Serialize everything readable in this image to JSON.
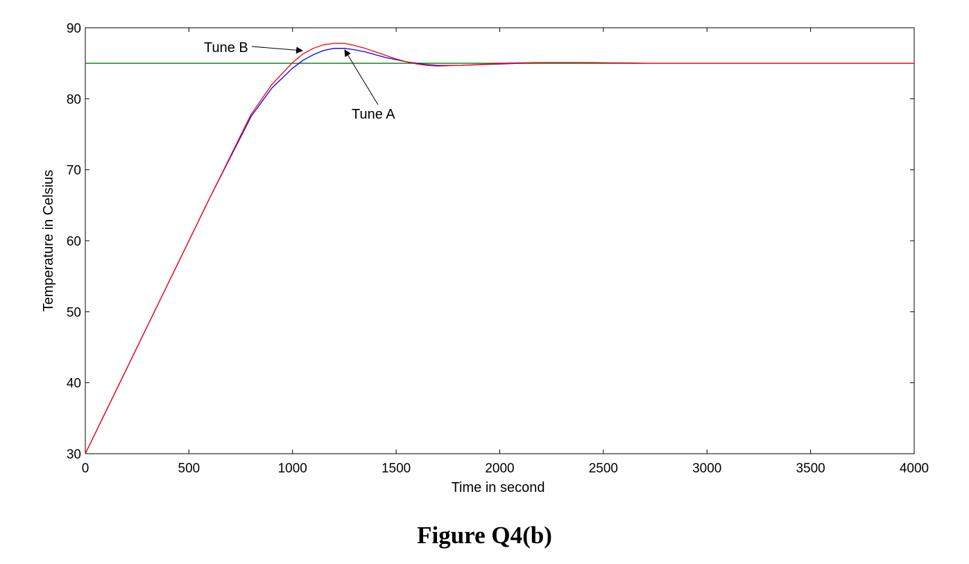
{
  "figure": {
    "caption": "Figure Q4(b)"
  },
  "chart_data": {
    "type": "line",
    "xlabel": "Time in second",
    "ylabel": "Temperature in Celsius",
    "xlim": [
      0,
      4000
    ],
    "ylim": [
      30,
      90
    ],
    "xticks": [
      0,
      500,
      1000,
      1500,
      2000,
      2500,
      3000,
      3500,
      4000
    ],
    "yticks": [
      30,
      40,
      50,
      60,
      70,
      80,
      90
    ],
    "grid": false,
    "series": [
      {
        "name": "Tune A",
        "color": "#0000ff",
        "x": [
          0,
          200,
          400,
          600,
          800,
          900,
          1000,
          1050,
          1100,
          1150,
          1200,
          1250,
          1300,
          1350,
          1400,
          1450,
          1500,
          1550,
          1600,
          1650,
          1700,
          1800,
          1900,
          2000,
          2200,
          2400,
          2700
        ],
        "y": [
          30,
          42,
          54,
          66,
          77.5,
          81.5,
          84.3,
          85.4,
          86.2,
          86.8,
          87.1,
          87.1,
          86.9,
          86.6,
          86.2,
          85.8,
          85.5,
          85.2,
          85.0,
          84.8,
          84.7,
          84.7,
          84.8,
          84.9,
          85.1,
          85.1,
          85.0
        ]
      },
      {
        "name": "Tune B",
        "color": "#ff0000",
        "x": [
          0,
          200,
          400,
          600,
          800,
          900,
          1000,
          1050,
          1100,
          1150,
          1200,
          1250,
          1300,
          1350,
          1400,
          1450,
          1500,
          1550,
          1600,
          1650,
          1700,
          1800,
          1900,
          2000,
          2200,
          2400,
          2700,
          3000,
          4000
        ],
        "y": [
          30,
          42,
          54,
          66,
          77.8,
          82,
          85.1,
          86.3,
          87.1,
          87.6,
          87.8,
          87.8,
          87.5,
          87.1,
          86.6,
          86.1,
          85.6,
          85.2,
          84.9,
          84.7,
          84.6,
          84.7,
          84.8,
          85.0,
          85.1,
          85.1,
          85.0,
          85.0,
          85.0
        ]
      },
      {
        "name": "",
        "color": "#008000",
        "x": [
          0,
          4000
        ],
        "y": [
          85,
          85
        ]
      }
    ],
    "annotations": [
      {
        "text": "Tune B",
        "points_to": "Tune B"
      },
      {
        "text": "Tune A",
        "points_to": "Tune A"
      }
    ]
  }
}
